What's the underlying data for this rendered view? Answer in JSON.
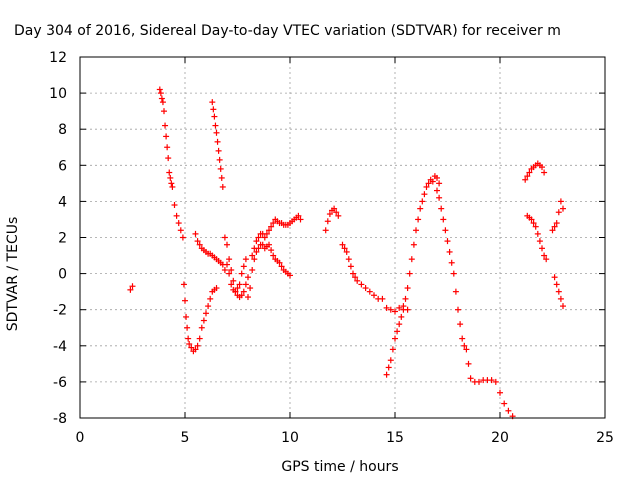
{
  "chart_data": {
    "type": "scatter",
    "title": "Day 304 of 2016, Sidereal Day-to-day VTEC variation (SDTVAR) for receiver m",
    "xlabel": "GPS time / hours",
    "ylabel": "SDTVAR / TECUs",
    "xlim": [
      0,
      25
    ],
    "ylim": [
      -8,
      12
    ],
    "x_ticks": [
      0,
      5,
      10,
      15,
      20,
      25
    ],
    "y_ticks": [
      -8,
      -6,
      -4,
      -2,
      0,
      2,
      4,
      6,
      8,
      10,
      12
    ],
    "grid": true,
    "legend": "none",
    "marker": "plus",
    "color": "#ff0000",
    "series": [
      {
        "x": [
          2.4,
          2.5,
          3.8,
          3.85,
          3.9,
          3.95,
          4.0,
          4.05,
          4.1,
          4.15,
          4.2,
          4.25,
          4.3,
          4.35,
          4.4,
          4.5,
          4.6,
          4.7,
          4.8,
          4.9
        ],
        "y": [
          -0.9,
          -0.7,
          10.2,
          10.0,
          9.7,
          9.5,
          9.0,
          8.2,
          7.6,
          7.0,
          6.4,
          5.6,
          5.3,
          5.0,
          4.8,
          3.8,
          3.2,
          2.8,
          2.4,
          2.0
        ]
      },
      {
        "x": [
          4.95,
          5.0,
          5.05,
          5.1,
          5.15,
          5.2,
          5.3,
          5.4,
          5.5,
          5.6,
          5.7,
          5.8,
          5.9,
          6.0,
          6.1,
          6.2,
          6.3,
          6.4,
          6.5
        ],
        "y": [
          -0.6,
          -1.5,
          -2.4,
          -3.0,
          -3.6,
          -3.9,
          -4.1,
          -4.3,
          -4.2,
          -4.0,
          -3.6,
          -3.0,
          -2.6,
          -2.2,
          -1.8,
          -1.4,
          -1.0,
          -0.9,
          -0.8
        ]
      },
      {
        "x": [
          6.3,
          6.35,
          6.4,
          6.45,
          6.5,
          6.55,
          6.6,
          6.65,
          6.7,
          6.75,
          6.8
        ],
        "y": [
          9.5,
          9.1,
          8.7,
          8.2,
          7.8,
          7.3,
          6.8,
          6.3,
          5.8,
          5.3,
          4.8
        ]
      },
      {
        "x": [
          5.5,
          5.6,
          5.7,
          5.8,
          5.9,
          6.0,
          6.1,
          6.2,
          6.3,
          6.4,
          6.5,
          6.6,
          6.7,
          6.8,
          6.9,
          7.0,
          7.1,
          7.2,
          7.3,
          7.4,
          7.5,
          7.6,
          7.7,
          7.8,
          7.9,
          8.0
        ],
        "y": [
          2.2,
          1.8,
          1.6,
          1.4,
          1.3,
          1.2,
          1.1,
          1.1,
          1.0,
          0.9,
          0.8,
          0.7,
          0.6,
          0.5,
          2.0,
          1.6,
          0.8,
          0.2,
          -0.4,
          -1.0,
          -1.2,
          -1.3,
          -1.2,
          -1.0,
          -0.6,
          -0.2
        ]
      },
      {
        "x": [
          6.9,
          7.0,
          7.1,
          7.2,
          7.3,
          7.4,
          7.5,
          7.6,
          7.7,
          7.8,
          7.9,
          8.0,
          8.1,
          8.2,
          8.3,
          8.4,
          8.5,
          8.6,
          8.7,
          8.8,
          8.9,
          9.0,
          9.1,
          9.2,
          9.3,
          9.4,
          9.5,
          9.6,
          9.7,
          9.8,
          9.9,
          10.0
        ],
        "y": [
          0.2,
          0.5,
          0.0,
          -0.6,
          -0.9,
          -1.0,
          -0.8,
          -0.6,
          0.0,
          0.4,
          0.8,
          -1.3,
          -0.8,
          0.2,
          0.8,
          1.2,
          1.4,
          1.6,
          1.6,
          1.4,
          1.5,
          1.6,
          1.3,
          1.0,
          0.8,
          0.7,
          0.6,
          0.4,
          0.2,
          0.1,
          0.0,
          -0.1
        ]
      },
      {
        "x": [
          8.2,
          8.3,
          8.4,
          8.5,
          8.6,
          8.7,
          8.8,
          8.9,
          9.0,
          9.1,
          9.2,
          9.3,
          9.4,
          9.5,
          9.6,
          9.7,
          9.8,
          9.9,
          10.0,
          10.1,
          10.2,
          10.3,
          10.4,
          10.5
        ],
        "y": [
          1.0,
          1.4,
          1.8,
          2.0,
          2.2,
          2.2,
          2.0,
          2.2,
          2.4,
          2.6,
          2.8,
          3.0,
          2.9,
          2.8,
          2.8,
          2.7,
          2.7,
          2.7,
          2.8,
          2.9,
          3.0,
          3.1,
          3.2,
          3.0
        ]
      },
      {
        "x": [
          11.7,
          11.8,
          11.9,
          12.0,
          12.1,
          12.2,
          12.3,
          12.5,
          12.6,
          12.7,
          12.8,
          12.9,
          13.0,
          13.1,
          13.2,
          13.4,
          13.6,
          13.8,
          14.0,
          14.2,
          14.4,
          14.6,
          14.8,
          15.0,
          15.2,
          15.4,
          15.6
        ],
        "y": [
          2.4,
          2.9,
          3.3,
          3.5,
          3.6,
          3.4,
          3.2,
          1.6,
          1.4,
          1.2,
          0.8,
          0.4,
          0.0,
          -0.2,
          -0.4,
          -0.6,
          -0.8,
          -1.0,
          -1.2,
          -1.4,
          -1.4,
          -1.9,
          -2.0,
          -2.1,
          -1.9,
          -1.8,
          -2.0
        ]
      },
      {
        "x": [
          14.6,
          14.7,
          14.8,
          14.9,
          15.0,
          15.1,
          15.2,
          15.3,
          15.4,
          15.5,
          15.6,
          15.7,
          15.8,
          15.9,
          16.0,
          16.1,
          16.2,
          16.3,
          16.4,
          16.5,
          16.6,
          16.7,
          16.8,
          16.9,
          17.0,
          17.1
        ],
        "y": [
          -5.6,
          -5.2,
          -4.8,
          -4.2,
          -3.6,
          -3.2,
          -2.8,
          -2.4,
          -2.0,
          -1.4,
          -0.8,
          0.0,
          0.8,
          1.6,
          2.4,
          3.0,
          3.6,
          4.0,
          4.4,
          4.8,
          5.0,
          5.2,
          5.1,
          5.4,
          5.3,
          5.0
        ]
      },
      {
        "x": [
          17.0,
          17.1,
          17.2,
          17.3,
          17.4,
          17.5,
          17.6,
          17.7,
          17.8,
          17.9,
          18.0,
          18.1,
          18.2,
          18.3,
          18.4,
          18.5,
          18.6,
          18.8,
          19.0,
          19.2,
          19.4,
          19.6,
          19.8,
          20.0,
          20.2,
          20.4,
          20.6
        ],
        "y": [
          4.6,
          4.2,
          3.6,
          3.0,
          2.4,
          1.8,
          1.2,
          0.6,
          0.0,
          -1.0,
          -2.0,
          -2.8,
          -3.6,
          -4.0,
          -4.2,
          -5.0,
          -5.8,
          -6.0,
          -6.0,
          -5.9,
          -5.9,
          -5.9,
          -6.0,
          -6.6,
          -7.2,
          -7.6,
          -7.9
        ]
      },
      {
        "x": [
          21.2,
          21.3,
          21.4,
          21.5,
          21.6,
          21.7,
          21.8,
          21.9,
          22.0,
          22.1,
          21.3,
          21.4,
          21.5,
          21.6,
          21.7,
          21.8,
          21.9,
          22.0,
          22.1,
          22.2,
          22.5,
          22.6,
          22.7,
          22.8,
          22.9,
          23.0,
          22.6,
          22.7,
          22.8,
          22.9,
          23.0
        ],
        "y": [
          5.2,
          5.4,
          5.6,
          5.8,
          5.9,
          6.0,
          6.1,
          6.0,
          5.9,
          5.6,
          3.2,
          3.1,
          3.0,
          2.8,
          2.6,
          2.2,
          1.8,
          1.4,
          1.0,
          0.8,
          2.4,
          2.6,
          2.8,
          3.4,
          4.0,
          3.6,
          -0.2,
          -0.6,
          -1.0,
          -1.4,
          -1.8
        ]
      }
    ]
  }
}
